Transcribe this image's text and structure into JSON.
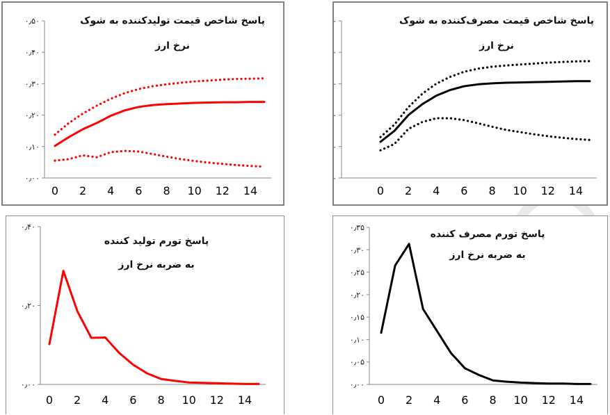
{
  "charts": [
    {
      "id": "tl",
      "title_line1": "پاسخ شاخص قیمت تولیدکننده به شوک",
      "title_line2": "نرخ ارز",
      "y_ticks": [
        "۰٫۰۰",
        "۰٫۱۰",
        "۰٫۲۰",
        "۰٫۳۰",
        "۰٫۴۰",
        "۰٫۵۰"
      ],
      "x_ticks": [
        "0",
        "2",
        "4",
        "6",
        "8",
        "10",
        "12",
        "14"
      ]
    },
    {
      "id": "tr",
      "title_line1": "پاسخ شاخص قیمت مصرف‌کننده به شوک",
      "title_line2": "نرخ ارز",
      "y_ticks": [
        "۰٫۰۰",
        "۰٫۱۰",
        "۰٫۲۰",
        "۰٫۳۰",
        "۰٫۴۰",
        "۰٫۵۰"
      ],
      "x_ticks": [
        "0",
        "2",
        "4",
        "6",
        "8",
        "10",
        "12",
        "14"
      ]
    },
    {
      "id": "bl",
      "title_line1": "پاسخ تورم تولید کننده",
      "title_line2": "به ضربه نرخ ارز",
      "y_ticks": [
        "۰٫۰۰",
        "۰٫۲۰",
        "۰٫۴۰"
      ],
      "x_ticks": [
        "0",
        "2",
        "4",
        "6",
        "8",
        "10",
        "12",
        "14"
      ]
    },
    {
      "id": "br",
      "title_line1": "پاسخ تورم مصرف کننده",
      "title_line2": "به ضربه نرخ ارز",
      "y_ticks": [
        "۰٫۰۰",
        "۰٫۰۵",
        "۰٫۱۰",
        "۰٫۱۵",
        "۰٫۲۰",
        "۰٫۲۵",
        "۰٫۳۰",
        "۰٫۳۵"
      ],
      "x_ticks": [
        "0",
        "2",
        "4",
        "6",
        "8",
        "10",
        "12",
        "14"
      ]
    }
  ],
  "chart_data": [
    {
      "type": "line",
      "title": "پاسخ شاخص قیمت تولیدکننده به شوک نرخ ارز",
      "x": [
        0,
        1,
        2,
        3,
        4,
        5,
        6,
        7,
        8,
        9,
        10,
        11,
        12,
        13,
        14,
        15
      ],
      "ylim": [
        0,
        0.5
      ],
      "color": "#ff0000",
      "series": [
        {
          "style": "solid",
          "values": [
            0.102,
            0.13,
            0.155,
            0.175,
            0.198,
            0.215,
            0.226,
            0.232,
            0.235,
            0.237,
            0.239,
            0.24,
            0.241,
            0.241,
            0.242,
            0.242
          ]
        },
        {
          "style": "dotted",
          "values": [
            0.138,
            0.175,
            0.205,
            0.23,
            0.252,
            0.27,
            0.283,
            0.292,
            0.298,
            0.303,
            0.307,
            0.31,
            0.313,
            0.315,
            0.316,
            0.317
          ]
        },
        {
          "style": "dotted",
          "values": [
            0.055,
            0.06,
            0.072,
            0.066,
            0.082,
            0.086,
            0.084,
            0.076,
            0.068,
            0.06,
            0.054,
            0.049,
            0.045,
            0.041,
            0.038,
            0.036
          ]
        }
      ]
    },
    {
      "type": "line",
      "title": "پاسخ شاخص قیمت مصرف‌کننده به شوک نرخ ارز",
      "x": [
        0,
        1,
        2,
        3,
        4,
        5,
        6,
        7,
        8,
        9,
        10,
        11,
        12,
        13,
        14,
        15
      ],
      "ylim": [
        0,
        0.5
      ],
      "color": "#000000",
      "series": [
        {
          "style": "solid",
          "values": [
            0.115,
            0.15,
            0.2,
            0.235,
            0.262,
            0.28,
            0.292,
            0.298,
            0.301,
            0.303,
            0.304,
            0.305,
            0.306,
            0.307,
            0.308,
            0.308
          ]
        },
        {
          "style": "dotted",
          "values": [
            0.13,
            0.17,
            0.225,
            0.268,
            0.3,
            0.322,
            0.338,
            0.348,
            0.354,
            0.358,
            0.361,
            0.364,
            0.367,
            0.369,
            0.371,
            0.372
          ]
        },
        {
          "style": "dotted",
          "values": [
            0.088,
            0.108,
            0.156,
            0.178,
            0.19,
            0.19,
            0.184,
            0.174,
            0.163,
            0.153,
            0.146,
            0.139,
            0.133,
            0.128,
            0.124,
            0.121
          ]
        }
      ]
    },
    {
      "type": "line",
      "title": "پاسخ تورم تولید کننده به ضربه نرخ ارز",
      "x": [
        0,
        1,
        2,
        3,
        4,
        5,
        6,
        7,
        8,
        9,
        10,
        11,
        12,
        13,
        14,
        15
      ],
      "ylim": [
        0,
        0.4
      ],
      "color": "#ff0000",
      "series": [
        {
          "style": "solid",
          "values": [
            0.102,
            0.288,
            0.186,
            0.118,
            0.119,
            0.08,
            0.05,
            0.028,
            0.014,
            0.009,
            0.005,
            0.004,
            0.003,
            0.002,
            0.001,
            0.001
          ]
        }
      ]
    },
    {
      "type": "line",
      "title": "پاسخ تورم مصرف کننده به ضربه نرخ ارز",
      "x": [
        0,
        1,
        2,
        3,
        4,
        5,
        6,
        7,
        8,
        9,
        10,
        11,
        12,
        13,
        14,
        15
      ],
      "ylim": [
        0,
        0.35
      ],
      "color": "#000000",
      "series": [
        {
          "style": "solid",
          "values": [
            0.115,
            0.265,
            0.313,
            0.168,
            0.119,
            0.07,
            0.036,
            0.021,
            0.009,
            0.006,
            0.004,
            0.003,
            0.002,
            0.002,
            0.001,
            0.001
          ]
        }
      ]
    }
  ]
}
